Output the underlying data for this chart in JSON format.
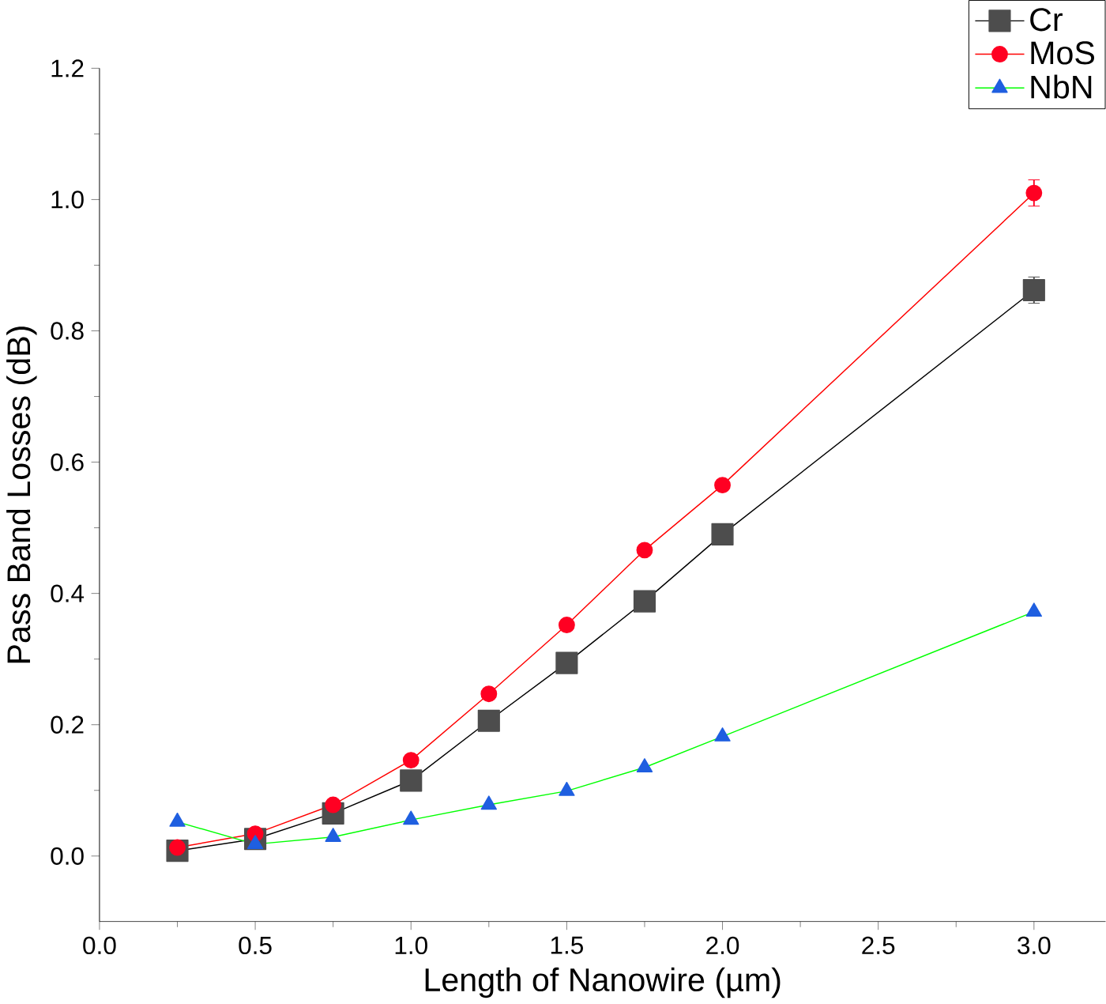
{
  "chart_data": {
    "type": "line",
    "xlabel": "Length of Nanowire (µm)",
    "ylabel": "Pass Band Losses (dB)",
    "x": [
      0.25,
      0.5,
      0.75,
      1.0,
      1.25,
      1.5,
      1.75,
      2.0,
      3.0
    ],
    "series": [
      {
        "name": "Cr",
        "color": "#000000",
        "colors": [
          "#4d4d4d",
          "#4d4d4d",
          "#4d4d4d",
          "#4d4d4d",
          "#4d4d4d",
          "#4d4d4d",
          "#4d4d4d",
          "#4d4d4d",
          "#4d4d4d"
        ],
        "marker": "square",
        "values": [
          0.008,
          0.026,
          0.065,
          0.115,
          0.206,
          0.294,
          0.388,
          0.49,
          0.862
        ],
        "errors": [
          null,
          null,
          null,
          null,
          null,
          null,
          null,
          null,
          0.02
        ]
      },
      {
        "name": "MoS",
        "color": "#ff0000",
        "colors": [
          "#ff0022",
          "#ff0022",
          "#ff0022",
          "#ff0022",
          "#ff0022",
          "#ff0022",
          "#ff0022",
          "#ff0022",
          "#ff0022"
        ],
        "marker": "circle",
        "values": [
          0.013,
          0.034,
          0.078,
          0.146,
          0.247,
          0.352,
          0.466,
          0.565,
          1.01
        ],
        "errors": [
          null,
          null,
          null,
          null,
          null,
          null,
          null,
          null,
          0.02
        ]
      },
      {
        "name": "NbN",
        "color": "#00ff00",
        "colors": [
          "#1f5fe0",
          "#1f5fe0",
          "#1f5fe0",
          "#1f5fe0",
          "#1f5fe0",
          "#1f5fe0",
          "#1f5fe0",
          "#1f5fe0",
          "#1f5fe0"
        ],
        "marker": "triangle",
        "values": [
          0.052,
          0.018,
          0.029,
          0.055,
          0.078,
          0.099,
          0.135,
          0.182,
          0.372
        ]
      }
    ],
    "xlim": [
      0,
      3.23
    ],
    "ylim": [
      -0.1,
      1.2
    ],
    "xticks": [
      {
        "value": 0,
        "label": "0.0"
      },
      0.5,
      {
        "value": 1,
        "label": "1.0"
      },
      1.5,
      {
        "value": 2,
        "label": "2.0"
      },
      2.5,
      {
        "value": 3,
        "label": "3.0"
      }
    ],
    "yticks": [
      {
        "value": 0,
        "label": "0.0"
      },
      0.2,
      0.4,
      0.6,
      0.8,
      {
        "value": 1,
        "label": "1.0"
      },
      1.2
    ],
    "grid": false,
    "legend": "top right"
  }
}
